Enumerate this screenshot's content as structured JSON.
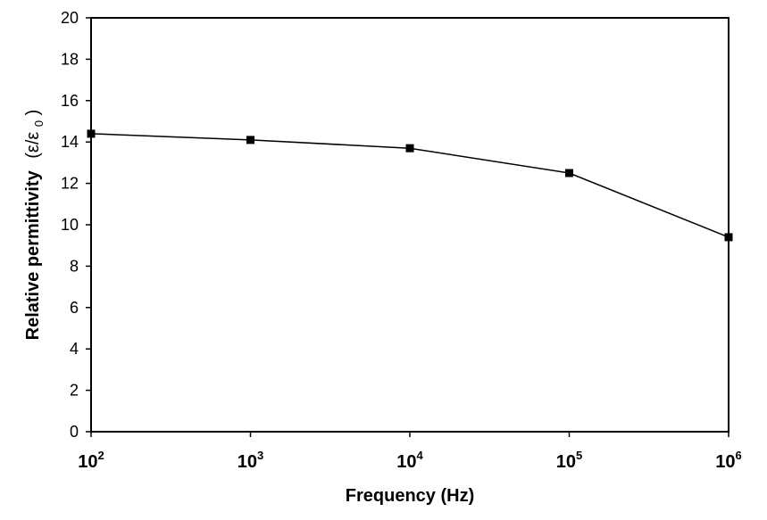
{
  "chart_data": {
    "type": "line",
    "title": "",
    "xlabel": "Frequency (Hz)",
    "ylabel": {
      "main": "Relative permittivity",
      "symbol_open": "(ε/ε",
      "symbol_sub": "0",
      "symbol_close": ")"
    },
    "x_scale": "log",
    "xlim": [
      100,
      1000000
    ],
    "x_ticks": [
      {
        "base": "10",
        "exp": "2"
      },
      {
        "base": "10",
        "exp": "3"
      },
      {
        "base": "10",
        "exp": "4"
      },
      {
        "base": "10",
        "exp": "5"
      },
      {
        "base": "10",
        "exp": "6"
      }
    ],
    "ylim": [
      0,
      20
    ],
    "y_ticks": [
      "0",
      "2",
      "4",
      "6",
      "8",
      "10",
      "12",
      "14",
      "16",
      "18",
      "20"
    ],
    "grid": false,
    "legend": "none",
    "series": [
      {
        "marker": "square",
        "color": "#000000",
        "x": [
          100,
          1000,
          10000,
          100000,
          1000000
        ],
        "y": [
          14.4,
          14.1,
          13.7,
          12.5,
          9.4
        ]
      }
    ]
  }
}
